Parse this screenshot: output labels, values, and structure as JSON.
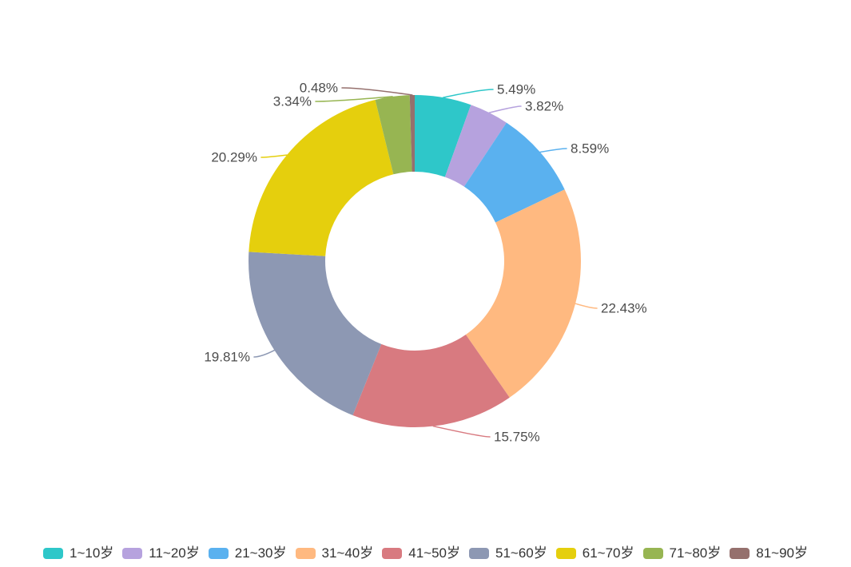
{
  "chart_data": {
    "type": "pie",
    "variant": "donut",
    "title": "",
    "unit": "%",
    "total": 100.0,
    "categories": [
      "1~10岁",
      "11~20岁",
      "21~30岁",
      "31~40岁",
      "41~50岁",
      "51~60岁",
      "61~70岁",
      "71~80岁",
      "81~90岁"
    ],
    "values": [
      5.49,
      3.82,
      8.59,
      22.43,
      15.75,
      19.81,
      20.29,
      3.34,
      0.48
    ],
    "labels": [
      "5.49%",
      "3.82%",
      "8.59%",
      "22.43%",
      "15.75%",
      "19.81%",
      "20.29%",
      "3.34%",
      "0.48%"
    ],
    "colors": [
      "#2ec7c9",
      "#b6a2de",
      "#5ab1ef",
      "#ffb980",
      "#d87a80",
      "#8d98b3",
      "#e5cf0d",
      "#97b552",
      "#95706d"
    ],
    "start_angle": "12-oclock",
    "direction": "clockwise",
    "legend_position": "bottom",
    "grid": false
  },
  "colors": {
    "background": "#ffffff",
    "label_text": "#4d4d4d",
    "legend_text": "#333333"
  }
}
